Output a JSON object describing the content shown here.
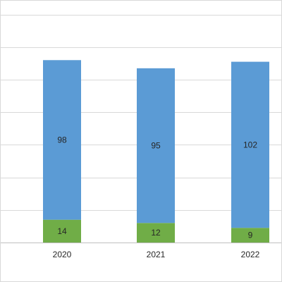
{
  "chart_data": {
    "type": "bar",
    "stacked": true,
    "categories": [
      "2020",
      "2021",
      "2022"
    ],
    "series": [
      {
        "values": [
          14,
          12,
          9
        ],
        "color": "#70ad47"
      },
      {
        "values": [
          98,
          95,
          102
        ],
        "color": "#5b9bd5"
      }
    ],
    "ylim": [
      0,
      140
    ],
    "y_grid_step": 20,
    "grid": true,
    "legend": "none"
  }
}
